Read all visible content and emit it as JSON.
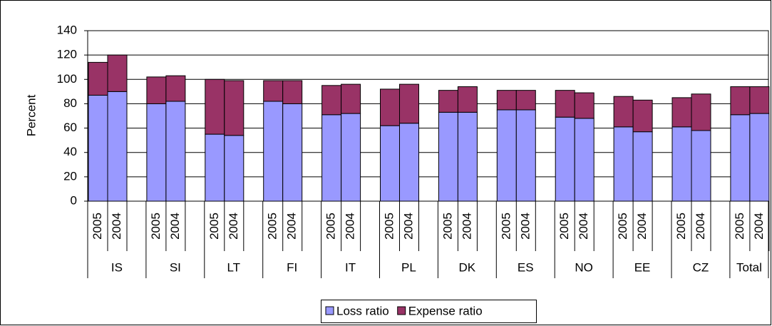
{
  "chart_data": {
    "type": "stacked-bar",
    "y_label": "Percent",
    "groups": [
      "IS",
      "SI",
      "LT",
      "FI",
      "IT",
      "PL",
      "DK",
      "ES",
      "NO",
      "EE",
      "CZ",
      "Total"
    ],
    "categories": [
      "2005",
      "2004",
      "2005",
      "2004",
      "2005",
      "2004",
      "2005",
      "2004",
      "2005",
      "2004",
      "2005",
      "2004",
      "2005",
      "2004",
      "2005",
      "2004",
      "2005",
      "2004",
      "2005",
      "2004",
      "2005",
      "2004",
      "2005",
      "2004"
    ],
    "series": [
      {
        "name": "Loss ratio",
        "color": "#9999ff",
        "values": [
          87,
          90,
          80,
          82,
          55,
          54,
          82,
          80,
          71,
          72,
          62,
          64,
          73,
          73,
          75,
          75,
          69,
          68,
          61,
          57,
          61,
          58,
          71,
          72
        ]
      },
      {
        "name": "Expense ratio",
        "color": "#993366",
        "values": [
          27,
          30,
          22,
          21,
          45,
          45,
          17,
          19,
          24,
          24,
          30,
          32,
          18,
          21,
          16,
          16,
          22,
          21,
          25,
          26,
          24,
          30,
          23,
          22
        ]
      }
    ],
    "ylim": [
      0,
      140
    ],
    "yticks": [
      0,
      20,
      40,
      60,
      80,
      100,
      120,
      140
    ],
    "grid": true,
    "legend": "bottom"
  }
}
